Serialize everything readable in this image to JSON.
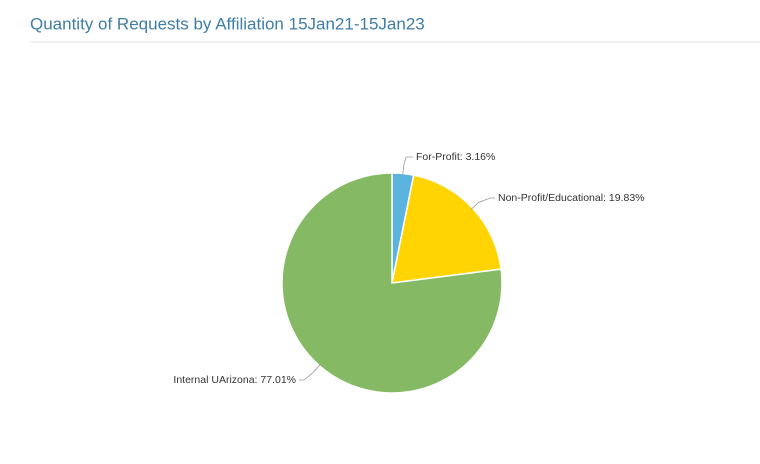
{
  "chart_data": {
    "type": "pie",
    "title": "Quantity of Requests by Affiliation  15Jan21-15Jan23",
    "values": [
      3.16,
      19.83,
      77.01
    ],
    "value_labels": [
      "For-Profit: 3.16%",
      "Non-Profit/Educational: 19.83%",
      "Internal UArizona: 77.01%"
    ],
    "colors": [
      "#5bb4df",
      "#ffd400",
      "#85b964"
    ]
  }
}
